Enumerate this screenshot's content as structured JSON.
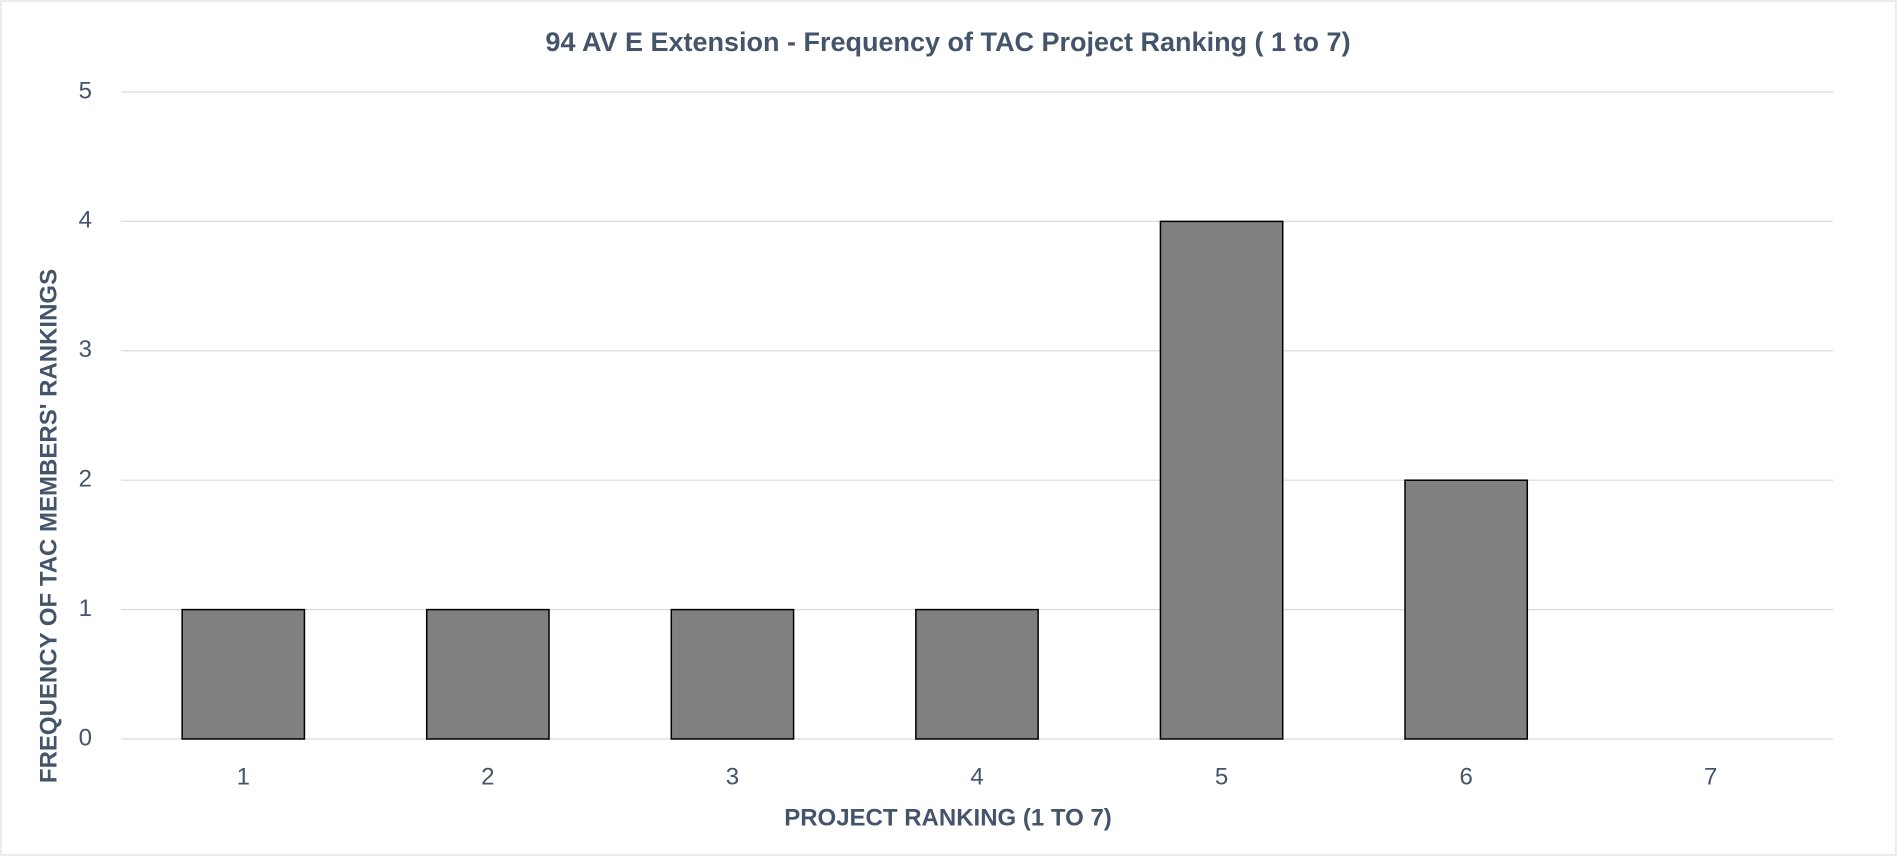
{
  "chart_data": {
    "type": "bar",
    "title": "94 AV E Extension - Frequency of TAC Project Ranking ( 1 to 7)",
    "x_label": "PROJECT RANKING (1 TO 7)",
    "y_label": "FREQUENCY OF TAC MEMBERS' RANKINGS",
    "categories": [
      "1",
      "2",
      "3",
      "4",
      "5",
      "6",
      "7"
    ],
    "values": [
      1,
      1,
      1,
      1,
      4,
      2,
      0
    ],
    "color": "#808080",
    "ylim": [
      0,
      5
    ],
    "yticks": [
      0,
      1,
      2,
      3,
      4,
      5
    ],
    "grid": true
  }
}
